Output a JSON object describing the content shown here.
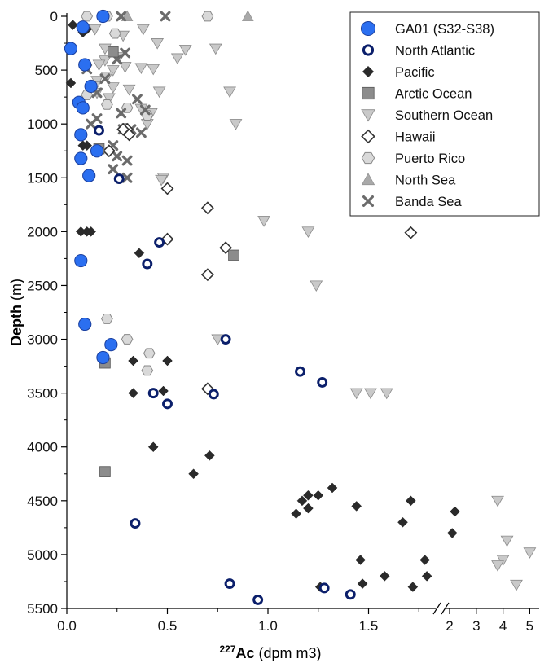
{
  "chart_data": {
    "type": "scatter",
    "title": "",
    "xlabel": {
      "superscript": "227",
      "main": "Ac",
      "unit": "(dpm m3)"
    },
    "ylabel": "Depth (m)",
    "ylim": [
      5500,
      0
    ],
    "yticks": [
      "0",
      "500",
      "1000",
      "1500",
      "2000",
      "2500",
      "3000",
      "3500",
      "4000",
      "4500",
      "5000",
      "5500"
    ],
    "x_axis_break": true,
    "xlim_main": [
      0,
      1.8
    ],
    "xticks_main": [
      "0.0",
      "0.5",
      "1.0",
      "1.5"
    ],
    "xlim_inset": [
      1.9,
      5.1
    ],
    "xticks_inset": [
      "2",
      "3",
      "4",
      "5"
    ],
    "legend_position": "top-right",
    "series": [
      {
        "name": "GA01 (S32-S38)",
        "marker": "circle",
        "color": "#2b6ff0",
        "points": [
          [
            0.18,
            0
          ],
          [
            0.08,
            100
          ],
          [
            0.02,
            300
          ],
          [
            0.09,
            450
          ],
          [
            0.12,
            650
          ],
          [
            0.06,
            800
          ],
          [
            0.08,
            850
          ],
          [
            0.07,
            1100
          ],
          [
            0.15,
            1250
          ],
          [
            0.07,
            1320
          ],
          [
            0.11,
            1480
          ],
          [
            0.07,
            2270
          ],
          [
            0.09,
            2860
          ],
          [
            0.22,
            3050
          ],
          [
            0.18,
            3170
          ]
        ]
      },
      {
        "name": "North Atlantic",
        "marker": "ring",
        "color": "#0b1f6b",
        "points": [
          [
            0.16,
            1060
          ],
          [
            0.26,
            1510
          ],
          [
            0.46,
            2100
          ],
          [
            0.4,
            2300
          ],
          [
            0.79,
            3000
          ],
          [
            1.16,
            3300
          ],
          [
            1.27,
            3400
          ],
          [
            0.43,
            3500
          ],
          [
            0.73,
            3510
          ],
          [
            0.5,
            3600
          ],
          [
            0.34,
            4710
          ],
          [
            0.81,
            5270
          ],
          [
            1.28,
            5310
          ],
          [
            1.41,
            5370
          ],
          [
            0.95,
            5420
          ]
        ]
      },
      {
        "name": "Pacific",
        "marker": "diamond",
        "color": "#2a2a2a",
        "points": [
          [
            0.03,
            80
          ],
          [
            0.1,
            120
          ],
          [
            0.08,
            150
          ],
          [
            0.02,
            620
          ],
          [
            0.08,
            1200
          ],
          [
            0.1,
            1200
          ],
          [
            0.1,
            2000
          ],
          [
            0.12,
            2000
          ],
          [
            0.07,
            2000
          ],
          [
            0.36,
            2200
          ],
          [
            0.33,
            3200
          ],
          [
            0.5,
            3200
          ],
          [
            0.48,
            3480
          ],
          [
            0.33,
            3500
          ],
          [
            0.43,
            4000
          ],
          [
            0.71,
            4080
          ],
          [
            0.63,
            4250
          ],
          [
            1.32,
            4380
          ],
          [
            1.2,
            4450
          ],
          [
            1.25,
            4450
          ],
          [
            1.17,
            4500
          ],
          [
            1.44,
            4550
          ],
          [
            1.2,
            4570
          ],
          [
            1.14,
            4620
          ],
          [
            1.67,
            4700
          ],
          [
            1.71,
            4500
          ],
          [
            1.46,
            5050
          ],
          [
            1.78,
            5050
          ],
          [
            1.58,
            5200
          ],
          [
            1.79,
            5200
          ],
          [
            1.47,
            5270
          ],
          [
            1.26,
            5300
          ],
          [
            1.72,
            5300
          ],
          [
            2.2,
            4600
          ],
          [
            2.1,
            4800
          ]
        ]
      },
      {
        "name": "Arctic Ocean",
        "marker": "square",
        "color": "#8c8c8c",
        "points": [
          [
            0.23,
            330
          ],
          [
            0.16,
            1230
          ],
          [
            0.83,
            2220
          ],
          [
            0.19,
            3220
          ],
          [
            0.19,
            4230
          ]
        ]
      },
      {
        "name": "Southern Ocean",
        "marker": "triangle-down",
        "color": "#c9c9c9",
        "points": [
          [
            0.14,
            120
          ],
          [
            0.38,
            120
          ],
          [
            0.28,
            180
          ],
          [
            0.45,
            250
          ],
          [
            0.19,
            300
          ],
          [
            0.59,
            310
          ],
          [
            0.74,
            300
          ],
          [
            0.26,
            380
          ],
          [
            0.55,
            390
          ],
          [
            0.19,
            410
          ],
          [
            0.16,
            450
          ],
          [
            0.29,
            470
          ],
          [
            0.37,
            480
          ],
          [
            0.43,
            490
          ],
          [
            0.23,
            500
          ],
          [
            0.2,
            560
          ],
          [
            0.15,
            600
          ],
          [
            0.14,
            650
          ],
          [
            0.23,
            660
          ],
          [
            0.31,
            680
          ],
          [
            0.46,
            700
          ],
          [
            0.81,
            700
          ],
          [
            0.15,
            710
          ],
          [
            0.21,
            760
          ],
          [
            0.37,
            860
          ],
          [
            0.42,
            900
          ],
          [
            0.4,
            1000
          ],
          [
            0.84,
            1000
          ],
          [
            0.48,
            1500
          ],
          [
            0.47,
            1520
          ],
          [
            0.98,
            1900
          ],
          [
            1.2,
            2000
          ],
          [
            1.24,
            2500
          ],
          [
            0.75,
            3000
          ],
          [
            1.44,
            3500
          ],
          [
            1.51,
            3500
          ],
          [
            1.59,
            3500
          ],
          [
            3.8,
            4500
          ],
          [
            4.15,
            4870
          ],
          [
            5.0,
            4980
          ],
          [
            4.0,
            5050
          ],
          [
            3.8,
            5100
          ],
          [
            4.5,
            5280
          ]
        ]
      },
      {
        "name": "Hawaii",
        "marker": "diamond-open",
        "color": "#333333",
        "points": [
          [
            0.3,
            1050
          ],
          [
            0.28,
            1050
          ],
          [
            0.31,
            1100
          ],
          [
            0.21,
            1250
          ],
          [
            0.5,
            1600
          ],
          [
            0.7,
            1780
          ],
          [
            0.5,
            2070
          ],
          [
            0.79,
            2150
          ],
          [
            1.71,
            2010
          ],
          [
            0.7,
            2400
          ],
          [
            0.7,
            3460
          ]
        ]
      },
      {
        "name": "Puerto Rico",
        "marker": "hexagon",
        "color": "#d9d9d9",
        "points": [
          [
            0.1,
            0
          ],
          [
            0.2,
            0
          ],
          [
            0.7,
            0
          ],
          [
            0.24,
            160
          ],
          [
            0.2,
            820
          ],
          [
            0.1,
            730
          ],
          [
            0.3,
            850
          ],
          [
            0.4,
            920
          ],
          [
            0.29,
            1040
          ],
          [
            0.2,
            2810
          ],
          [
            0.3,
            3000
          ],
          [
            0.41,
            3130
          ],
          [
            0.4,
            3290
          ]
        ]
      },
      {
        "name": "North Sea",
        "marker": "triangle-up",
        "color": "#a9a9a9",
        "points": [
          [
            0.3,
            0
          ],
          [
            0.9,
            0
          ]
        ]
      },
      {
        "name": "Banda Sea",
        "marker": "cross",
        "color": "#6b6b6b",
        "points": [
          [
            0.27,
            0
          ],
          [
            0.49,
            0
          ],
          [
            0.29,
            340
          ],
          [
            0.25,
            400
          ],
          [
            0.1,
            490
          ],
          [
            0.19,
            580
          ],
          [
            0.15,
            710
          ],
          [
            0.35,
            770
          ],
          [
            0.39,
            870
          ],
          [
            0.27,
            900
          ],
          [
            0.15,
            950
          ],
          [
            0.28,
            1050
          ],
          [
            0.32,
            1050
          ],
          [
            0.37,
            1080
          ],
          [
            0.23,
            1200
          ],
          [
            0.25,
            1300
          ],
          [
            0.3,
            1340
          ],
          [
            0.23,
            1420
          ],
          [
            0.3,
            1500
          ],
          [
            0.12,
            1000
          ]
        ]
      }
    ]
  }
}
